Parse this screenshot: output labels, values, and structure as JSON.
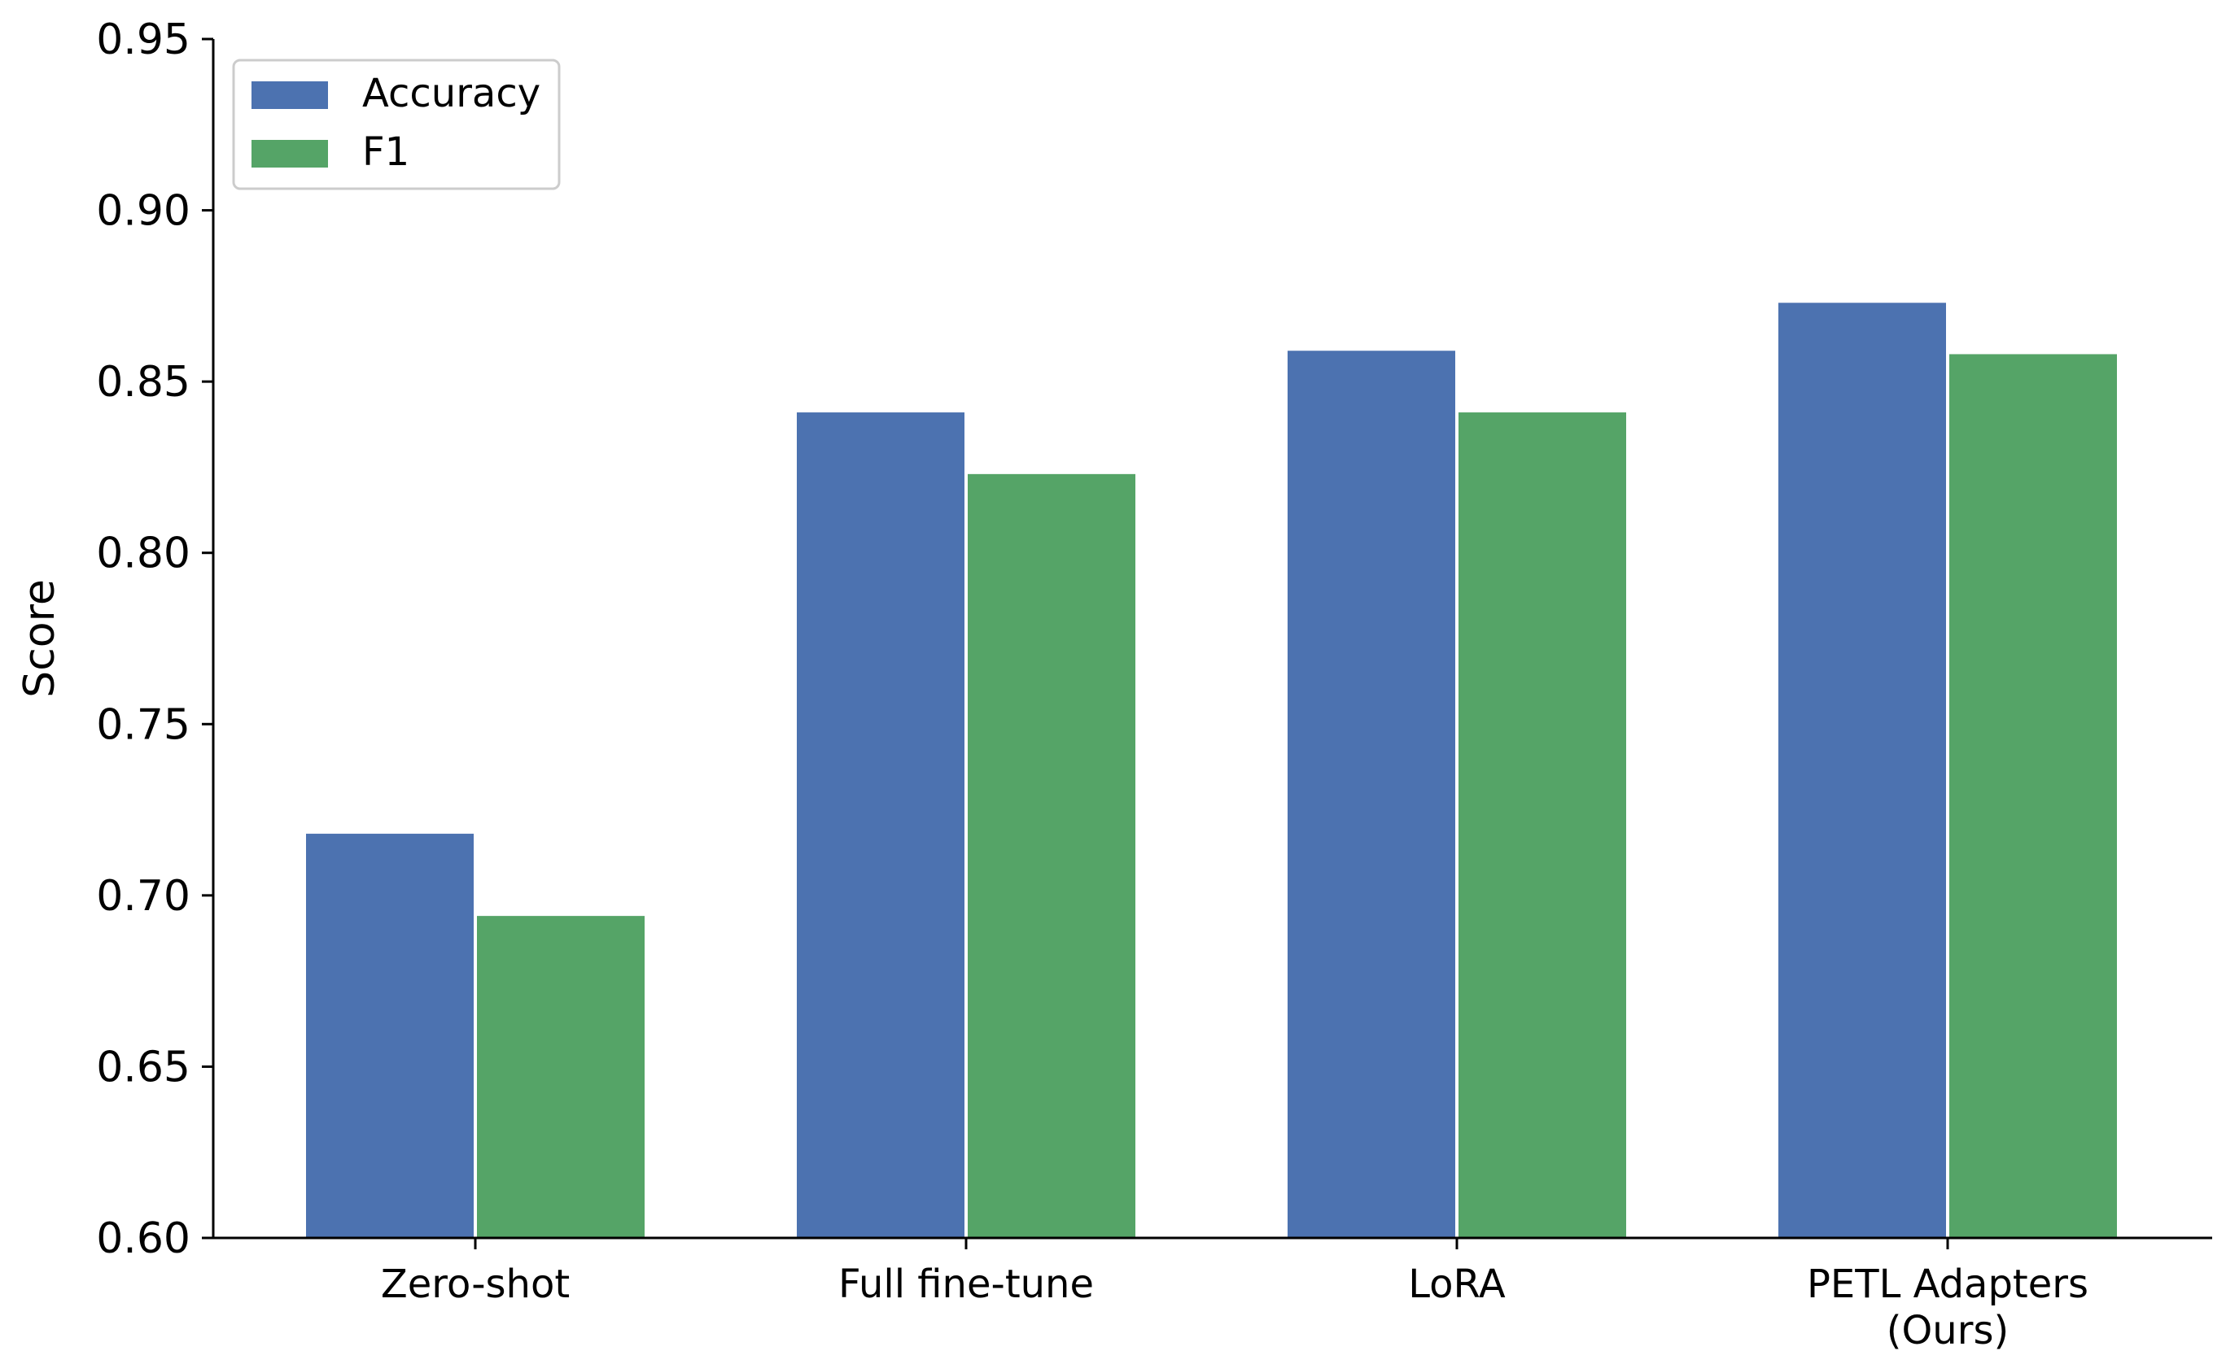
{
  "chart_data": {
    "type": "bar",
    "title": "",
    "xlabel": "",
    "ylabel": "Score",
    "ylim": [
      0.6,
      0.95
    ],
    "yticks": [
      "0.60",
      "0.65",
      "0.70",
      "0.75",
      "0.80",
      "0.85",
      "0.90",
      "0.95"
    ],
    "categories": [
      [
        "Zero-shot"
      ],
      [
        "Full fine-tune"
      ],
      [
        "LoRA"
      ],
      [
        "PETL Adapters",
        "(Ours)"
      ]
    ],
    "series": [
      {
        "name": "Accuracy",
        "color": "#4c72b0",
        "values": [
          0.718,
          0.841,
          0.859,
          0.873
        ]
      },
      {
        "name": "F1",
        "color": "#55a467",
        "values": [
          0.694,
          0.823,
          0.841,
          0.858
        ]
      }
    ],
    "grid": false,
    "legend": "top-left"
  }
}
